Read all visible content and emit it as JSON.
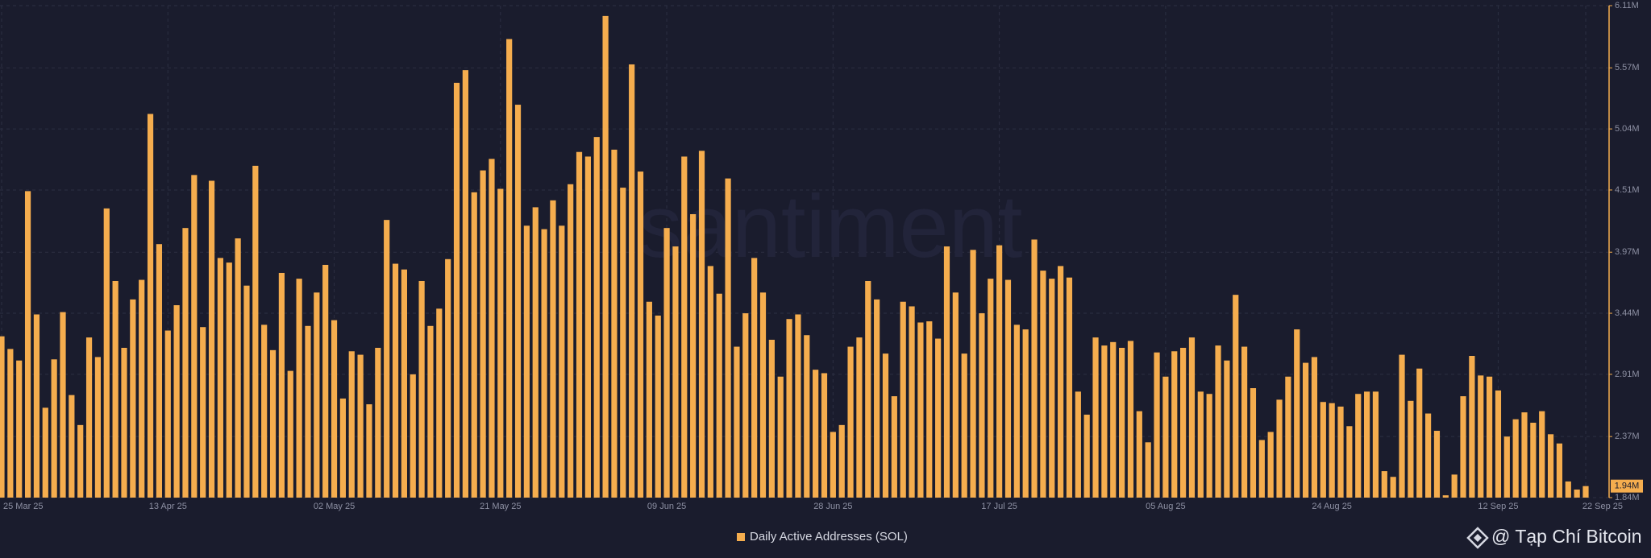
{
  "chart_data": {
    "type": "bar",
    "watermark": "santiment",
    "series": [
      {
        "name": "Daily Active Addresses (SOL)",
        "color": "#f5ad4e",
        "values": [
          3.24,
          3.13,
          3.03,
          4.5,
          3.43,
          2.62,
          3.04,
          3.45,
          2.73,
          2.47,
          3.23,
          3.06,
          4.35,
          3.72,
          3.14,
          3.56,
          3.73,
          5.17,
          4.04,
          3.29,
          3.51,
          4.18,
          4.64,
          3.32,
          4.59,
          3.92,
          3.88,
          4.09,
          3.68,
          4.72,
          3.34,
          3.12,
          3.79,
          2.94,
          3.74,
          3.33,
          3.62,
          3.86,
          3.38,
          2.7,
          3.11,
          3.08,
          2.65,
          3.14,
          4.25,
          3.87,
          3.82,
          2.91,
          3.72,
          3.33,
          3.48,
          3.91,
          5.44,
          5.55,
          4.49,
          4.68,
          4.78,
          4.52,
          5.82,
          5.25,
          4.2,
          4.36,
          4.17,
          4.42,
          4.2,
          4.56,
          4.84,
          4.8,
          4.97,
          6.02,
          4.86,
          4.53,
          5.6,
          4.67,
          3.54,
          3.42,
          4.18,
          4.02,
          4.8,
          4.3,
          4.85,
          3.85,
          3.61,
          4.61,
          3.15,
          3.44,
          3.92,
          3.62,
          3.21,
          2.89,
          3.39,
          3.43,
          3.25,
          2.95,
          2.92,
          2.41,
          2.47,
          3.15,
          3.23,
          3.72,
          3.56,
          3.09,
          2.72,
          3.54,
          3.5,
          3.36,
          3.37,
          3.22,
          4.02,
          3.62,
          3.09,
          3.99,
          3.44,
          3.74,
          4.03,
          3.73,
          3.34,
          3.3,
          4.08,
          3.81,
          3.74,
          3.85,
          3.75,
          2.76,
          2.56,
          3.23,
          3.16,
          3.19,
          3.14,
          3.2,
          2.59,
          2.32,
          3.1,
          2.89,
          3.11,
          3.14,
          3.23,
          2.76,
          2.74,
          3.16,
          3.03,
          3.6,
          3.15,
          2.79,
          2.34,
          2.41,
          2.69,
          2.89,
          3.3,
          3.01,
          3.06,
          2.67,
          2.66,
          2.63,
          2.46,
          2.74,
          2.76,
          2.76,
          2.07,
          2.02,
          3.08,
          2.68,
          2.96,
          2.57,
          2.42,
          1.86,
          2.04,
          2.72,
          3.07,
          2.9,
          2.89,
          2.77,
          2.37,
          2.52,
          2.58,
          2.49,
          2.59,
          2.39,
          2.31,
          1.98,
          1.91,
          1.94
        ]
      }
    ],
    "categories": [
      "25 Mar 25",
      null,
      null,
      null,
      null,
      null,
      null,
      null,
      null,
      null,
      null,
      null,
      null,
      null,
      null,
      null,
      null,
      null,
      null,
      "13 Apr 25",
      null,
      null,
      null,
      null,
      null,
      null,
      null,
      null,
      null,
      null,
      null,
      null,
      null,
      null,
      null,
      null,
      null,
      null,
      "02 May 25",
      null,
      null,
      null,
      null,
      null,
      null,
      null,
      null,
      null,
      null,
      null,
      null,
      null,
      null,
      null,
      null,
      null,
      null,
      "21 May 25",
      null,
      null,
      null,
      null,
      null,
      null,
      null,
      null,
      null,
      null,
      null,
      null,
      null,
      null,
      null,
      null,
      null,
      null,
      "09 Jun 25",
      null,
      null,
      null,
      null,
      null,
      null,
      null,
      null,
      null,
      null,
      null,
      null,
      null,
      null,
      null,
      null,
      null,
      null,
      "28 Jun 25",
      null,
      null,
      null,
      null,
      null,
      null,
      null,
      null,
      null,
      null,
      null,
      null,
      null,
      null,
      null,
      null,
      null,
      null,
      "17 Jul 25",
      null,
      null,
      null,
      null,
      null,
      null,
      null,
      null,
      null,
      null,
      null,
      null,
      null,
      null,
      null,
      null,
      null,
      null,
      "05 Aug 25",
      null,
      null,
      null,
      null,
      null,
      null,
      null,
      null,
      null,
      null,
      null,
      null,
      null,
      null,
      null,
      null,
      null,
      null,
      "24 Aug 25",
      null,
      null,
      null,
      null,
      null,
      null,
      null,
      null,
      null,
      null,
      null,
      null,
      null,
      null,
      null,
      null,
      null,
      null,
      "12 Sep 25",
      null,
      null,
      null,
      null,
      null,
      null,
      null,
      null,
      null,
      "22 Sep 25"
    ],
    "ylim": [
      1.84,
      6.11
    ],
    "yticks": [
      {
        "value": 1.84,
        "label": "1.84M"
      },
      {
        "value": 2.37,
        "label": "2.37M"
      },
      {
        "value": 2.91,
        "label": "2.91M"
      },
      {
        "value": 3.44,
        "label": "3.44M"
      },
      {
        "value": 3.97,
        "label": "3.97M"
      },
      {
        "value": 4.51,
        "label": "4.51M"
      },
      {
        "value": 5.04,
        "label": "5.04M"
      },
      {
        "value": 5.57,
        "label": "5.57M"
      },
      {
        "value": 6.11,
        "label": "6.11M"
      }
    ],
    "current_value": {
      "value": 1.94,
      "label": "1.94M"
    },
    "grid": true
  },
  "footer_brand": "@ Tạp Chí Bitcoin"
}
